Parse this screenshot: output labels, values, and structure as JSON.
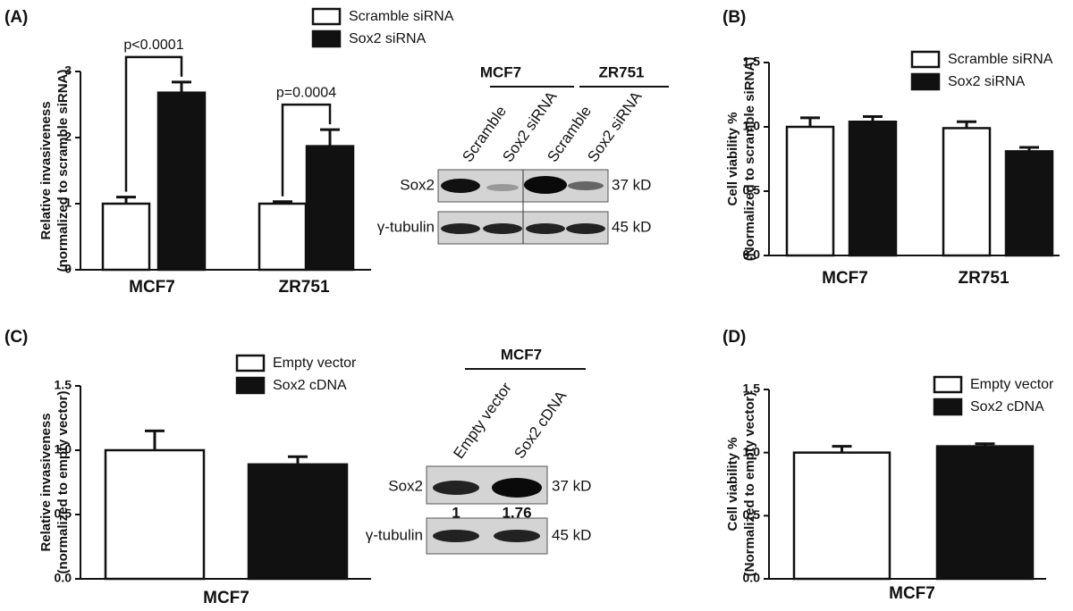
{
  "chart_data": [
    {
      "type": "bar",
      "panel_label": "(A)",
      "ylabel": [
        "Relative invasiveness",
        "(normalized to scramble siRNA)"
      ],
      "categories": [
        "MCF7",
        "ZR751"
      ],
      "series": [
        {
          "name": "Scramble siRNA",
          "color": "#ffffff",
          "values": [
            1.0,
            1.0
          ],
          "errors": [
            0.1,
            0.03
          ]
        },
        {
          "name": "Sox2 siRNA",
          "color": "#111111",
          "values": [
            2.68,
            1.87
          ],
          "errors": [
            0.16,
            0.25
          ]
        }
      ],
      "ylim": [
        0,
        3
      ],
      "yticks": [
        0,
        1,
        2,
        3
      ],
      "annotations": [
        "p<0.0001",
        "p=0.0004"
      ]
    },
    {
      "type": "bar",
      "panel_label": "(B)",
      "ylabel": [
        "Cell viability %",
        "(Normalized to scramble siRNA)"
      ],
      "categories": [
        "MCF7",
        "ZR751"
      ],
      "series": [
        {
          "name": "Scramble siRNA",
          "color": "#ffffff",
          "values": [
            1.0,
            0.99
          ],
          "errors": [
            0.07,
            0.05
          ]
        },
        {
          "name": "Sox2 siRNA",
          "color": "#111111",
          "values": [
            1.04,
            0.81
          ],
          "errors": [
            0.04,
            0.03
          ]
        }
      ],
      "ylim": [
        0,
        1.5
      ],
      "yticks": [
        {
          "value": 0,
          "label": "0.0"
        },
        {
          "value": 0.5,
          "label": "0.5"
        },
        {
          "value": 1,
          "label": "1.0"
        },
        {
          "value": 1.5,
          "label": "1.5"
        }
      ]
    },
    {
      "type": "bar",
      "panel_label": "(C)",
      "ylabel": [
        "Relative invasiveness",
        "(normalized to empty vector)"
      ],
      "categories": [
        "MCF7"
      ],
      "series": [
        {
          "name": "Empty vector",
          "color": "#ffffff",
          "values": [
            1.0
          ],
          "errors": [
            0.15
          ]
        },
        {
          "name": "Sox2 cDNA",
          "color": "#111111",
          "values": [
            0.89
          ],
          "errors": [
            0.06
          ]
        }
      ],
      "ylim": [
        0,
        1.5
      ],
      "yticks": [
        {
          "value": 0,
          "label": "0.0"
        },
        {
          "value": 0.5,
          "label": "0.5"
        },
        {
          "value": 1,
          "label": "1.0"
        },
        {
          "value": 1.5,
          "label": "1.5"
        }
      ]
    },
    {
      "type": "bar",
      "panel_label": "(D)",
      "ylabel": [
        "Cell viability %",
        "(Normalized to empty vector)"
      ],
      "categories": [
        "MCF7"
      ],
      "series": [
        {
          "name": "Empty vector",
          "color": "#ffffff",
          "values": [
            1.0
          ],
          "errors": [
            0.05
          ]
        },
        {
          "name": "Sox2 cDNA",
          "color": "#111111",
          "values": [
            1.05
          ],
          "errors": [
            0.02
          ]
        }
      ],
      "ylim": [
        0,
        1.5
      ],
      "yticks": [
        {
          "value": 0,
          "label": "0.0"
        },
        {
          "value": 0.5,
          "label": "0.5"
        },
        {
          "value": 1,
          "label": "1.0"
        },
        {
          "value": 1.5,
          "label": "1.5"
        }
      ]
    }
  ],
  "blots": [
    {
      "groups": [
        "MCF7",
        "ZR751"
      ],
      "lanes": [
        "Scramble",
        "Sox2 siRNA",
        "Scramble",
        "Sox2 siRNA"
      ],
      "rows": [
        {
          "label": "Sox2",
          "size": "37 kD"
        },
        {
          "label": "γ-tubulin",
          "size": "45 kD"
        }
      ]
    },
    {
      "groups": [
        "MCF7"
      ],
      "lanes": [
        "Empty vector",
        "Sox2 cDNA"
      ],
      "rows": [
        {
          "label": "Sox2",
          "size": "37 kD"
        },
        {
          "label": "γ-tubulin",
          "size": "45 kD"
        }
      ],
      "quantification": [
        1,
        1.76
      ]
    }
  ]
}
